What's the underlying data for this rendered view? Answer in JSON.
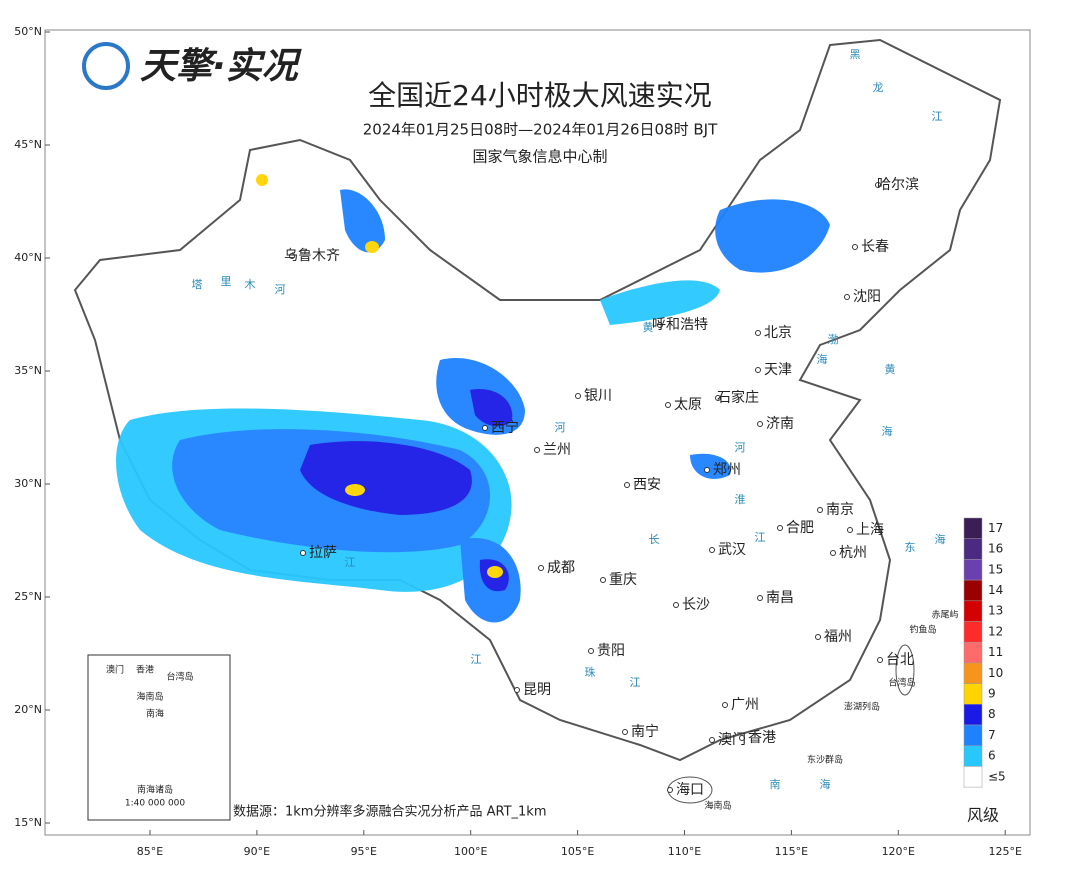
{
  "logo": "天擎·实况",
  "title": "全国近24小时极大风速实况",
  "subtitle": "2024年01月25日08时—2024年01月26日08时 BJT",
  "producer": "国家气象信息中心制",
  "source": "数据源：1km分辨率多源融合实况分析产品 ART_1km",
  "lat_labels": [
    "50°N",
    "45°N",
    "40°N",
    "35°N",
    "30°N",
    "25°N",
    "20°N",
    "15°N"
  ],
  "lon_labels": [
    "85°E",
    "90°E",
    "95°E",
    "100°E",
    "105°E",
    "110°E",
    "115°E",
    "120°E",
    "125°E"
  ],
  "cities": [
    "哈尔滨",
    "长春",
    "沈阳",
    "乌鲁木齐",
    "呼和浩特",
    "北京",
    "天津",
    "石家庄",
    "太原",
    "银川",
    "西宁",
    "兰州",
    "济南",
    "郑州",
    "西安",
    "南京",
    "合肥",
    "上海",
    "杭州",
    "武汉",
    "成都",
    "重庆",
    "长沙",
    "南昌",
    "福州",
    "台北",
    "贵阳",
    "昆明",
    "拉萨",
    "南宁",
    "广州",
    "香港",
    "澳门",
    "海口"
  ],
  "water_labels": [
    "塔",
    "里",
    "木",
    "河",
    "黄",
    "河",
    "河",
    "长",
    "江",
    "江",
    "珠",
    "江",
    "江",
    "淮",
    "渤",
    "海",
    "黄",
    "海",
    "东",
    "海",
    "南",
    "海",
    "黑",
    "龙",
    "江"
  ],
  "islands": [
    "赤尾屿",
    "钓鱼岛",
    "台湾岛",
    "澎湖列岛",
    "东沙群岛",
    "海南岛"
  ],
  "inset": {
    "labels": [
      "澳门",
      "香港",
      "台湾岛",
      "海南岛",
      "南海",
      "南海诸岛",
      "1:40 000 000"
    ]
  },
  "legend": {
    "title": "风级",
    "levels": [
      {
        "label": "17",
        "color": "#3b1e56"
      },
      {
        "label": "16",
        "color": "#4b2a82"
      },
      {
        "label": "15",
        "color": "#6a3fb0"
      },
      {
        "label": "14",
        "color": "#9b0000"
      },
      {
        "label": "13",
        "color": "#d40000"
      },
      {
        "label": "12",
        "color": "#ff2a2a"
      },
      {
        "label": "11",
        "color": "#ff6a6a"
      },
      {
        "label": "10",
        "color": "#f7941d"
      },
      {
        "label": "9",
        "color": "#ffd400"
      },
      {
        "label": "8",
        "color": "#1a1ae6"
      },
      {
        "label": "7",
        "color": "#1e82ff"
      },
      {
        "label": "6",
        "color": "#28c8ff"
      },
      {
        "label": "≤5",
        "color": "#ffffff"
      }
    ]
  }
}
